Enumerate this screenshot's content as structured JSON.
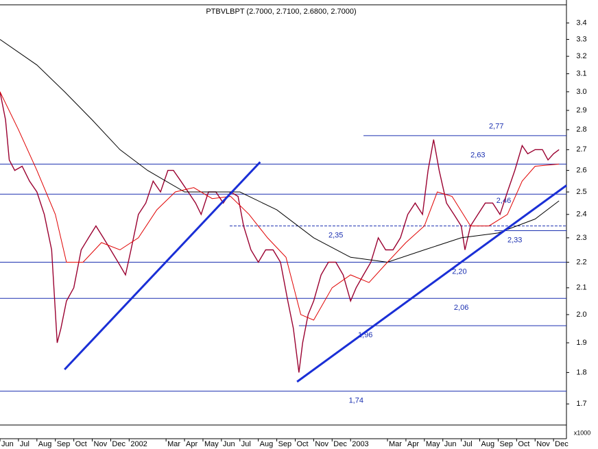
{
  "chart_data": {
    "type": "line",
    "title": "PTBVLBPT (2.7000, 2.7100, 2.6800, 2.7000)",
    "axis_unit": "x1000",
    "log_y": true,
    "xlim": [
      0,
      30.7
    ],
    "ylim": [
      1.636,
      3.51
    ],
    "yticks": [
      3.4,
      3.3,
      3.2,
      3.1,
      {
        "value": 3,
        "label": "3.0"
      },
      2.9,
      2.8,
      2.7,
      2.6,
      2.5,
      2.4,
      2.3,
      2.2,
      2.1,
      {
        "value": 2,
        "label": "2.0"
      },
      1.9,
      1.8,
      1.7
    ],
    "xticks": [
      {
        "value": 0,
        "label": "Jun"
      },
      {
        "value": 1,
        "label": "Jul"
      },
      {
        "value": 2,
        "label": "Aug"
      },
      {
        "value": 3,
        "label": "Sep"
      },
      {
        "value": 4,
        "label": "Oct"
      },
      {
        "value": 5,
        "label": "Nov"
      },
      {
        "value": 6,
        "label": "Dec"
      },
      {
        "value": 7,
        "label": "2002"
      },
      {
        "value": 9,
        "label": "Mar"
      },
      {
        "value": 10,
        "label": "Apr"
      },
      {
        "value": 11,
        "label": "May"
      },
      {
        "value": 12,
        "label": "Jun"
      },
      {
        "value": 13,
        "label": "Jul"
      },
      {
        "value": 14,
        "label": "Aug"
      },
      {
        "value": 15,
        "label": "Sep"
      },
      {
        "value": 16,
        "label": "Oct"
      },
      {
        "value": 17,
        "label": "Nov"
      },
      {
        "value": 18,
        "label": "Dec"
      },
      {
        "value": 19,
        "label": "2003"
      },
      {
        "value": 21,
        "label": "Mar"
      },
      {
        "value": 22,
        "label": "Apr"
      },
      {
        "value": 23,
        "label": "May"
      },
      {
        "value": 24,
        "label": "Jun"
      },
      {
        "value": 25,
        "label": "Jul"
      },
      {
        "value": 26,
        "label": "Aug"
      },
      {
        "value": 27,
        "label": "Sep"
      },
      {
        "value": 28,
        "label": "Oct"
      },
      {
        "value": 29,
        "label": "Nov"
      },
      {
        "value": 30,
        "label": "Dec"
      }
    ],
    "series": [
      {
        "color": "#9a0030",
        "width": 1.4,
        "x": [
          0,
          0.3,
          0.5,
          0.8,
          1.2,
          1.6,
          2.0,
          2.4,
          2.8,
          3.1,
          3.3,
          3.6,
          4.0,
          4.4,
          4.8,
          5.2,
          5.6,
          6.0,
          6.4,
          6.8,
          7.1,
          7.5,
          7.9,
          8.3,
          8.7,
          9.1,
          9.4,
          9.8,
          10.2,
          10.6,
          10.9,
          11.3,
          11.7,
          12.1,
          12.5,
          12.9,
          13.2,
          13.6,
          14.0,
          14.4,
          14.8,
          15.2,
          15.6,
          15.9,
          16.2,
          16.4,
          16.7,
          17.0,
          17.4,
          17.8,
          18.2,
          18.6,
          19.0,
          19.3,
          19.7,
          20.1,
          20.5,
          20.9,
          21.3,
          21.7,
          22.1,
          22.5,
          22.9,
          23.2,
          23.5,
          23.8,
          24.2,
          24.6,
          25.0,
          25.2,
          25.5,
          25.9,
          26.3,
          26.7,
          27.1,
          27.5,
          27.9,
          28.3,
          28.6,
          29.0,
          29.4,
          29.7,
          30.0,
          30.3
        ],
        "values": [
          3.0,
          2.85,
          2.65,
          2.6,
          2.62,
          2.55,
          2.5,
          2.4,
          2.25,
          1.9,
          1.95,
          2.05,
          2.1,
          2.25,
          2.3,
          2.35,
          2.3,
          2.25,
          2.2,
          2.15,
          2.25,
          2.4,
          2.45,
          2.55,
          2.5,
          2.6,
          2.6,
          2.55,
          2.5,
          2.45,
          2.4,
          2.5,
          2.5,
          2.45,
          2.5,
          2.48,
          2.35,
          2.25,
          2.2,
          2.25,
          2.25,
          2.2,
          2.05,
          1.95,
          1.8,
          1.9,
          2.0,
          2.05,
          2.15,
          2.2,
          2.2,
          2.15,
          2.05,
          2.1,
          2.15,
          2.2,
          2.3,
          2.25,
          2.25,
          2.3,
          2.4,
          2.45,
          2.4,
          2.6,
          2.75,
          2.6,
          2.45,
          2.4,
          2.35,
          2.25,
          2.35,
          2.4,
          2.45,
          2.45,
          2.4,
          2.5,
          2.6,
          2.72,
          2.68,
          2.7,
          2.7,
          2.65,
          2.68,
          2.7
        ]
      },
      {
        "color": "#000000",
        "width": 1,
        "x": [
          0,
          2,
          3.5,
          5,
          6.5,
          8,
          10,
          13,
          15,
          17,
          19,
          21,
          23,
          25,
          27,
          29,
          30.3
        ],
        "values": [
          3.3,
          3.15,
          3.0,
          2.85,
          2.7,
          2.6,
          2.5,
          2.5,
          2.42,
          2.3,
          2.22,
          2.2,
          2.25,
          2.3,
          2.32,
          2.38,
          2.46
        ]
      },
      {
        "color": "#e00000",
        "width": 1,
        "x": [
          0,
          1,
          2,
          3,
          3.6,
          4.5,
          5.5,
          6.5,
          7.5,
          8.5,
          9.5,
          10.5,
          11.5,
          12.5,
          13.5,
          14.5,
          15.5,
          16.3,
          17,
          18,
          19,
          20,
          21,
          22,
          23,
          23.7,
          24.5,
          25.5,
          26.5,
          27.5,
          28.3,
          29,
          30.3
        ],
        "values": [
          3.0,
          2.8,
          2.6,
          2.4,
          2.2,
          2.2,
          2.28,
          2.25,
          2.3,
          2.42,
          2.5,
          2.52,
          2.47,
          2.48,
          2.4,
          2.3,
          2.22,
          2.0,
          1.98,
          2.1,
          2.15,
          2.12,
          2.2,
          2.28,
          2.35,
          2.5,
          2.48,
          2.35,
          2.35,
          2.4,
          2.55,
          2.62,
          2.63
        ]
      }
    ],
    "trendlines": [
      {
        "color": "#1a2fd6",
        "x": [
          3.5,
          14.1
        ],
        "y": [
          1.81,
          2.64
        ]
      },
      {
        "color": "#1a2fd6",
        "x": [
          16.1,
          30.7
        ],
        "y": [
          1.77,
          2.53
        ]
      }
    ],
    "levels": [
      {
        "value": 2.77,
        "label": "2,77",
        "from": 19.7,
        "label_x": 26.9
      },
      {
        "value": 2.63,
        "label": "2,63",
        "from": 0,
        "label_x": 25.9
      },
      {
        "value": 2.35,
        "label": "2,35",
        "from": 12.45,
        "label_x": 18.2,
        "dashed": true
      },
      {
        "value": 2.33,
        "label": "2,33",
        "from": 26.8,
        "label_x": 27.9
      },
      {
        "value": 2.2,
        "label": "2,20",
        "from": 0,
        "label_x": 24.9
      },
      {
        "value": 2.06,
        "label": "2,06",
        "from": 0,
        "label_x": 25.0
      },
      {
        "value": 1.96,
        "label": "1,96",
        "from": 16.2,
        "label_x": 19.8
      },
      {
        "value": 1.74,
        "label": "1,74",
        "from": 0,
        "label_x": 19.3
      }
    ],
    "extra_levels": [
      {
        "value": 2.49,
        "from": 0
      }
    ],
    "annotations": [
      {
        "value": 2.46,
        "label": "2,46",
        "x": 27.3
      }
    ]
  }
}
